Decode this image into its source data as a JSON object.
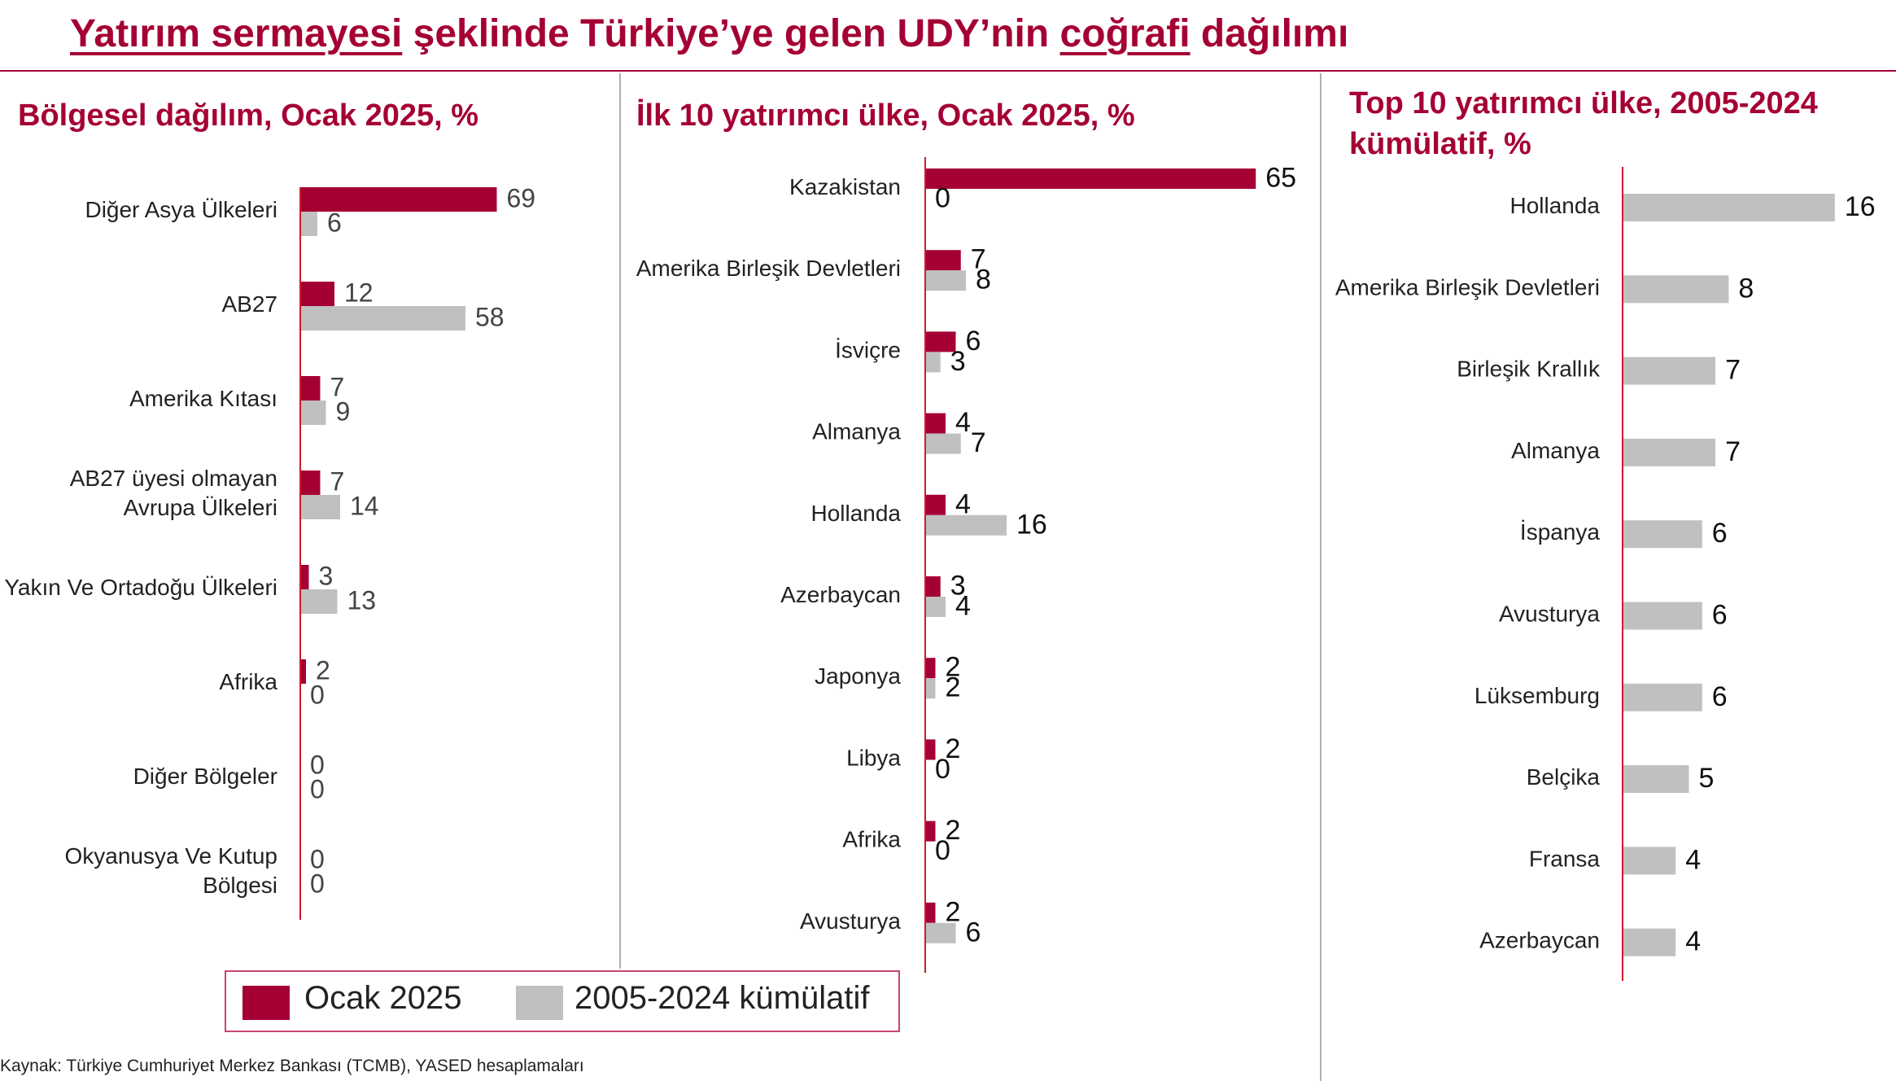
{
  "title": {
    "part1": "Yatırım sermayesi",
    "part2": " şeklinde Türkiye’ye gelen UDY’nin ",
    "part3": "coğrafi",
    "part4": " dağılımı"
  },
  "colors": {
    "ocak": "#a50034",
    "kumulatif": "#c0c0c0",
    "axis": "#d0192b"
  },
  "legend": {
    "ocak_label": "Ocak 2025",
    "kumulatif_label": "2005-2024 kümülatif"
  },
  "source": "Kaynak: Türkiye Cumhuriyet Merkez Bankası (TCMB), YASED hesaplamaları",
  "chart_data": [
    {
      "type": "bar",
      "orientation": "horizontal",
      "title": "Bölgesel dağılım, Ocak 2025, %",
      "categories": [
        "Diğer Asya Ülkeleri",
        "AB27",
        "Amerika Kıtası",
        "AB27 üyesi olmayan\nAvrupa Ülkeleri",
        "Yakın Ve Ortadoğu Ülkeleri",
        "Afrika",
        "Diğer Bölgeler",
        "Okyanusya Ve Kutup\nBölgesi"
      ],
      "series": [
        {
          "name": "Ocak 2025",
          "values": [
            69,
            12,
            7,
            7,
            3,
            2,
            0,
            0
          ]
        },
        {
          "name": "2005-2024 kümülatif",
          "values": [
            6,
            58,
            9,
            14,
            13,
            0,
            0,
            0
          ]
        }
      ],
      "xlim": [
        0,
        100
      ],
      "legend": "bottom"
    },
    {
      "type": "bar",
      "orientation": "horizontal",
      "title": "İlk 10 yatırımcı ülke, Ocak 2025, %",
      "categories": [
        "Kazakistan",
        "Amerika Birleşik Devletleri",
        "İsviçre",
        "Almanya",
        "Hollanda",
        "Azerbaycan",
        "Japonya",
        "Libya",
        "Afrika",
        "Avusturya"
      ],
      "series": [
        {
          "name": "Ocak 2025",
          "values": [
            65,
            7,
            6,
            4,
            4,
            3,
            2,
            2,
            2,
            2
          ]
        },
        {
          "name": "2005-2024 kümülatif",
          "values": [
            0,
            8,
            3,
            7,
            16,
            4,
            2,
            0,
            0,
            6
          ]
        }
      ],
      "xlim": [
        0,
        70
      ],
      "legend": "bottom"
    },
    {
      "type": "bar",
      "orientation": "horizontal",
      "title": "Top 10 yatırımcı ülke, 2005-2024 kümülatif, %",
      "categories": [
        "Hollanda",
        "Amerika Birleşik Devletleri",
        "Birleşik Krallık",
        "Almanya",
        "İspanya",
        "Avusturya",
        "Lüksemburg",
        "Belçika",
        "Fransa",
        "Azerbaycan"
      ],
      "series": [
        {
          "name": "2005-2024 kümülatif",
          "values": [
            16,
            8,
            7,
            7,
            6,
            6,
            6,
            5,
            4,
            4
          ]
        }
      ],
      "xlim": [
        0,
        18
      ]
    }
  ]
}
